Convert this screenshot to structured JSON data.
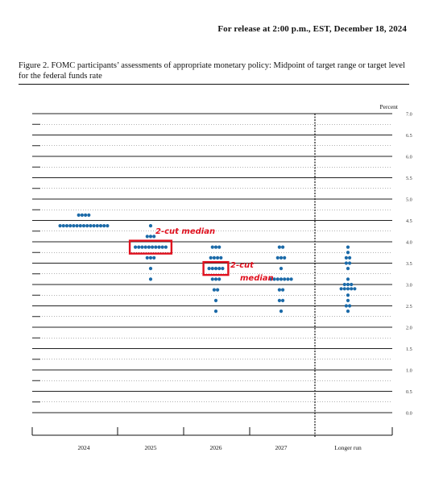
{
  "release_line": "For release at 2:00 p.m., EST, December 18, 2024",
  "figure_caption": "Figure 2.  FOMC participants’ assessments of appropriate monetary policy:  Midpoint of target range or target level for the federal funds rate",
  "colors": {
    "dot": "#1b6aa8",
    "highlight": "#e0101e",
    "axis": "#111111"
  },
  "annotations": {
    "first": "2-cut median",
    "second_line1": "2-cut",
    "second_line2": "median"
  },
  "chart_data": {
    "type": "scatter",
    "ylabel": "Percent",
    "ylim": [
      0.0,
      7.0
    ],
    "ytick_step": 0.25,
    "ytick_labels": [
      "0.0",
      "0.5",
      "1.0",
      "1.5",
      "2.0",
      "2.5",
      "3.0",
      "3.5",
      "4.0",
      "4.5",
      "5.0",
      "5.5",
      "6.0",
      "6.5",
      "7.0"
    ],
    "categories": [
      "2024",
      "2025",
      "2026",
      "2027",
      "Longer run"
    ],
    "dots": [
      {
        "category": "2024",
        "counts": {
          "4.625": 4,
          "4.375": 15
        }
      },
      {
        "category": "2025",
        "counts": {
          "4.375": 1,
          "4.125": 3,
          "3.875": 10,
          "3.625": 3,
          "3.375": 1,
          "3.125": 1
        }
      },
      {
        "category": "2026",
        "counts": {
          "3.875": 3,
          "3.625": 4,
          "3.375": 5,
          "3.125": 3,
          "2.875": 2,
          "2.625": 1,
          "2.375": 1
        }
      },
      {
        "category": "2027",
        "counts": {
          "3.875": 2,
          "3.625": 3,
          "3.375": 1,
          "3.125": 7,
          "2.875": 2,
          "2.625": 2,
          "2.375": 1
        }
      },
      {
        "category": "Longer run",
        "counts": {
          "3.875": 1,
          "3.75": 1,
          "3.625": 2,
          "3.5": 2,
          "3.375": 1,
          "3.125": 1,
          "3.0": 3,
          "2.9": 5,
          "2.75": 1,
          "2.625": 1,
          "2.5": 2,
          "2.375": 1
        }
      }
    ],
    "highlighted_medians": [
      {
        "category": "2025",
        "value": 3.875,
        "label": "2-cut median"
      },
      {
        "category": "2026",
        "value": 3.375,
        "label": "2-cut median"
      }
    ]
  }
}
